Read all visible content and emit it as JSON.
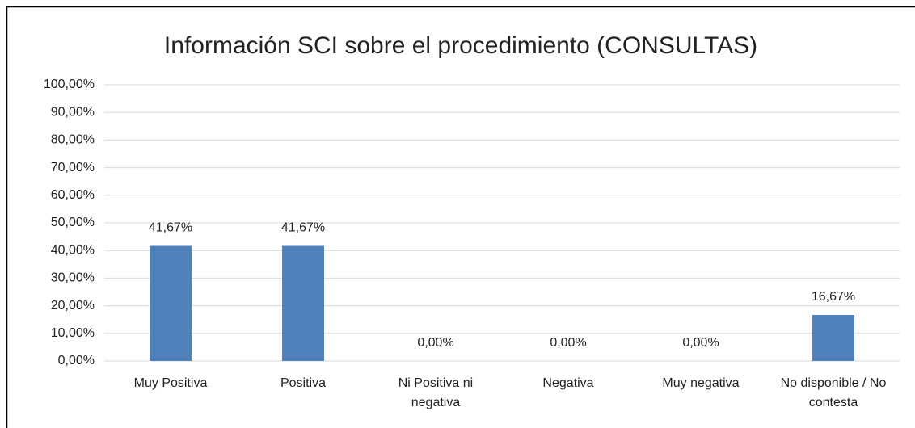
{
  "chart_data": {
    "type": "bar",
    "title": "Información SCI sobre el procedimiento (CONSULTAS)",
    "categories": [
      "Muy Positiva",
      "Positiva",
      "Ni Positiva ni negativa",
      "Negativa",
      "Muy negativa",
      "No disponible / No contesta"
    ],
    "values": [
      41.67,
      41.67,
      0,
      0,
      0,
      16.67
    ],
    "value_labels": [
      "41,67%",
      "41,67%",
      "0,00%",
      "0,00%",
      "0,00%",
      "16,67%"
    ],
    "color": "#4f81bd",
    "ylim": [
      0,
      100
    ],
    "yticks": [
      {
        "value": 0,
        "label": "0,00%"
      },
      {
        "value": 10,
        "label": "10,00%"
      },
      {
        "value": 20,
        "label": "20,00%"
      },
      {
        "value": 30,
        "label": "30,00%"
      },
      {
        "value": 40,
        "label": "40,00%"
      },
      {
        "value": 50,
        "label": "50,00%"
      },
      {
        "value": 60,
        "label": "60,00%"
      },
      {
        "value": 70,
        "label": "70,00%"
      },
      {
        "value": 80,
        "label": "80,00%"
      },
      {
        "value": 90,
        "label": "90,00%"
      },
      {
        "value": 100,
        "label": "100,00%"
      }
    ],
    "grid": true
  }
}
